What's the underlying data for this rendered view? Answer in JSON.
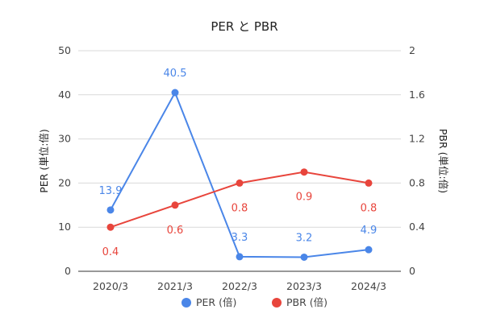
{
  "chart_data": {
    "type": "line",
    "title": "PER と PBR",
    "categories": [
      "2020/3",
      "2021/3",
      "2022/3",
      "2023/3",
      "2024/3"
    ],
    "y_left": {
      "label": "PER (単位:倍)",
      "range": [
        0,
        50
      ],
      "ticks": [
        "0",
        "10",
        "20",
        "30",
        "40",
        "50"
      ]
    },
    "y_right": {
      "label": "PBR (単位:倍)",
      "range": [
        0,
        2
      ],
      "ticks": [
        "0",
        "0.4",
        "0.8",
        "1.2",
        "1.6",
        "2"
      ]
    },
    "grid": true,
    "legend_position": "bottom",
    "series": [
      {
        "name": "PER (倍)",
        "axis": "left",
        "color": "#4a86e8",
        "values": [
          13.9,
          40.5,
          3.3,
          3.2,
          4.9
        ],
        "labels": [
          "13.9",
          "40.5",
          "3.3",
          "3.2",
          "4.9"
        ]
      },
      {
        "name": "PBR (倍)",
        "axis": "right",
        "color": "#e8453c",
        "values": [
          0.4,
          0.6,
          0.8,
          0.9,
          0.8
        ],
        "labels": [
          "0.4",
          "0.6",
          "0.8",
          "0.9",
          "0.8"
        ]
      }
    ]
  }
}
